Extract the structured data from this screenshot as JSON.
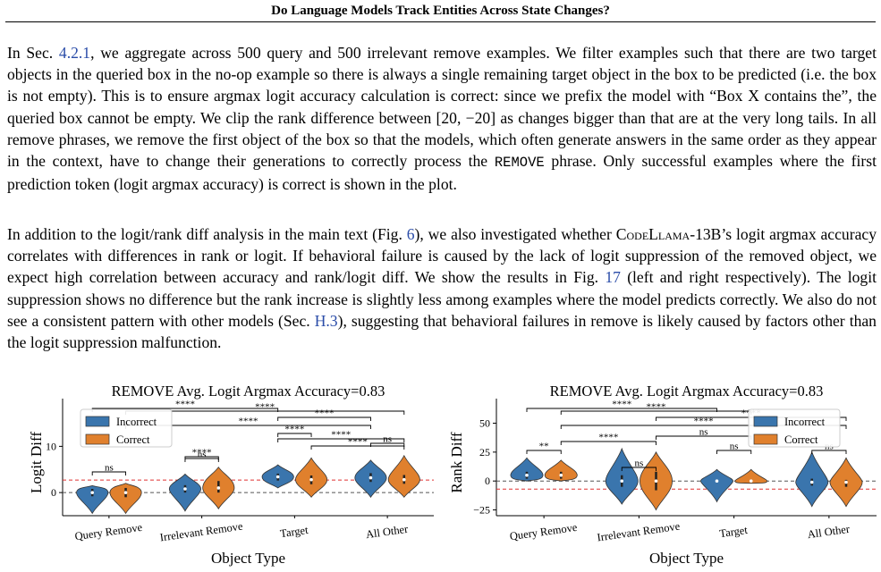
{
  "header": {
    "title": "Do Language Models Track Entities Across State Changes?"
  },
  "para1": {
    "t1": "In Sec. ",
    "ref1": "4.2.1",
    "t2": ", we aggregate across 500 query and 500 irrelevant remove examples. We filter examples such that there are two target objects in the queried box in the no-op example so there is always a single remaining target object in the box to be predicted (i.e. the box is not empty). This is to ensure argmax logit accuracy calculation is correct: since we prefix the model with “Box X contains the”, the queried box cannot be empty. We clip the rank difference between ",
    "math": "[20, −20]",
    "t3": " as changes bigger than that are at the very long tails. In all remove phrases, we remove the first object of the box so that the models, which often generate answers in the same order as they appear in the context, have to change their generations to correctly process the ",
    "code": "REMOVE",
    "t4": " phrase. Only successful examples where the first prediction token (logit argmax accuracy) is correct is shown in the plot."
  },
  "para2": {
    "t1": "In addition to the logit/rank diff analysis in the main text (Fig. ",
    "ref1": "6",
    "t2": "), we also investigated whether ",
    "model": "CodeLlama",
    "t3": "-13B’s logit argmax accuracy correlates with differences in rank or logit. If behavioral failure is caused by the lack of logit suppression of the removed object, we expect high correlation between accuracy and rank/logit diff. We show the results in Fig. ",
    "ref2": "17",
    "t4": " (left and right respectively). The logit suppression shows no difference but the rank increase is slightly less among examples where the model predicts correctly. We also do not see a consistent pattern with other models (Sec. ",
    "ref3": "H.3",
    "t5": "), suggesting that behavioral failures in remove is likely caused by factors other than the logit suppression malfunction."
  },
  "chart_data": [
    {
      "type": "violin",
      "title": "REMOVE Avg. Logit Argmax Accuracy=0.83",
      "xlabel": "Object Type",
      "ylabel": "Logit Diff",
      "categories": [
        "Query Remove",
        "Irrelevant Remove",
        "Target",
        "All Other"
      ],
      "yticks": [
        0,
        10
      ],
      "ylim": [
        -5,
        18
      ],
      "legend": {
        "position": "top-left",
        "entries": [
          "Incorrect",
          "Correct"
        ]
      },
      "colors": {
        "Incorrect": "#3a75ad",
        "Correct": "#e0802d"
      },
      "reference_lines": [
        {
          "y": 0,
          "color": "#555555",
          "style": "dashed"
        },
        {
          "y": 2.7,
          "color": "#e03030",
          "style": "dashed"
        }
      ],
      "series": [
        {
          "name": "Incorrect",
          "median": [
            0,
            0.8,
            3.4,
            3.2
          ],
          "q1": [
            -0.8,
            0,
            2.6,
            2.3
          ],
          "q3": [
            0.8,
            1.6,
            4.1,
            4.2
          ],
          "min": [
            -4.5,
            -4,
            1,
            -1
          ],
          "max": [
            1.5,
            4,
            6,
            7
          ]
        },
        {
          "name": "Correct",
          "median": [
            0,
            1,
            2.8,
            2.8
          ],
          "q1": [
            -1,
            0,
            1.8,
            1.9
          ],
          "q3": [
            1,
            2.5,
            3.7,
            3.8
          ],
          "min": [
            -4.5,
            -3.5,
            -1,
            -1
          ],
          "max": [
            2,
            5.5,
            7.5,
            8
          ]
        }
      ],
      "significance": [
        {
          "label": "ns",
          "from": 0,
          "to": 1
        },
        {
          "label": "****",
          "from": 2,
          "to": 3
        },
        {
          "label": "ns",
          "from": 2,
          "to": 3
        },
        {
          "label": "****",
          "from": 4,
          "to": 5
        },
        {
          "label": "****",
          "from": 4,
          "to": 7
        },
        {
          "label": "****",
          "from": 0,
          "to": 4
        },
        {
          "label": "****",
          "from": 4,
          "to": 6
        },
        {
          "label": "****",
          "from": 1,
          "to": 7
        },
        {
          "label": "****",
          "from": 1,
          "to": 6
        },
        {
          "label": "ns",
          "from": 6,
          "to": 7
        },
        {
          "label": "****",
          "from": 5,
          "to": 7
        }
      ]
    },
    {
      "type": "violin",
      "title": "REMOVE Avg. Logit Argmax Accuracy=0.83",
      "xlabel": "Object Type",
      "ylabel": "Rank Diff",
      "categories": [
        "Query Remove",
        "Irrelevant Remove",
        "Target",
        "All Other"
      ],
      "yticks": [
        -25,
        0,
        25,
        50
      ],
      "ylim": [
        -30,
        62
      ],
      "legend": {
        "position": "top-right",
        "entries": [
          "Incorrect",
          "Correct"
        ]
      },
      "colors": {
        "Incorrect": "#3a75ad",
        "Correct": "#e0802d"
      },
      "reference_lines": [
        {
          "y": 0,
          "color": "#555555",
          "style": "dashed"
        },
        {
          "y": -7,
          "color": "#e03030",
          "style": "dashed"
        }
      ],
      "series": [
        {
          "name": "Incorrect",
          "median": [
            5,
            0,
            0,
            -1
          ],
          "q1": [
            2,
            -5,
            -1,
            -4
          ],
          "q3": [
            8,
            5,
            1,
            2
          ],
          "min": [
            0,
            -20,
            -18,
            -22
          ],
          "max": [
            20,
            28,
            10,
            25
          ]
        },
        {
          "name": "Correct",
          "median": [
            5,
            0,
            0,
            -1
          ],
          "q1": [
            2,
            -8,
            -1,
            -5
          ],
          "q3": [
            8,
            8,
            0,
            1
          ],
          "min": [
            0,
            -25,
            -2,
            -22
          ],
          "max": [
            18,
            25,
            10,
            20
          ]
        }
      ],
      "significance": [
        {
          "label": "**",
          "from": 0,
          "to": 1
        },
        {
          "label": "ns",
          "from": 2,
          "to": 3
        },
        {
          "label": "ns",
          "from": 4,
          "to": 5
        },
        {
          "label": "ns",
          "from": 6,
          "to": 7
        },
        {
          "label": "****",
          "from": 1,
          "to": 3
        },
        {
          "label": "ns",
          "from": 3,
          "to": 5
        },
        {
          "label": "****",
          "from": 0,
          "to": 4
        },
        {
          "label": "****",
          "from": 3,
          "to": 7
        },
        {
          "label": "****",
          "from": 1,
          "to": 5
        },
        {
          "label": "****",
          "from": 1,
          "to": 7
        }
      ]
    }
  ]
}
